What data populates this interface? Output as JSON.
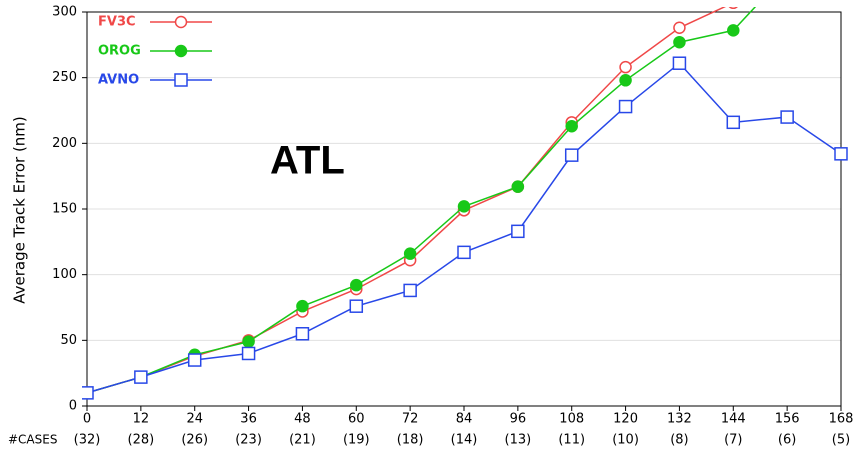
{
  "chart_data": {
    "type": "line",
    "annotation": "ATL",
    "y_label": "Average Track Error (nm)",
    "cases_label": "#CASES",
    "cases": [
      "(32)",
      "(28)",
      "(26)",
      "(23)",
      "(21)",
      "(19)",
      "(18)",
      "(14)",
      "(13)",
      "(11)",
      "(10)",
      "(8)",
      "(7)",
      "(6)",
      "(5)"
    ],
    "x": [
      0,
      12,
      24,
      36,
      48,
      60,
      72,
      84,
      96,
      108,
      120,
      132,
      144,
      156,
      168
    ],
    "xlim": [
      0,
      168
    ],
    "xticks": [
      0,
      12,
      24,
      36,
      48,
      60,
      72,
      84,
      96,
      108,
      120,
      132,
      144,
      156,
      {
        "value": 168,
        "label": "168"
      }
    ],
    "ylim": [
      0,
      300
    ],
    "yticks": [
      0,
      50,
      100,
      150,
      200,
      250,
      300
    ],
    "grid": true,
    "series": [
      {
        "name": "FV3C",
        "color": "#f04848",
        "marker": "open-circle",
        "values": [
          10,
          22,
          38,
          50,
          72,
          89,
          111,
          149,
          167,
          216,
          258,
          288,
          307,
          null,
          null
        ]
      },
      {
        "name": "OROG",
        "color": "#18c818",
        "marker": "filled-circle",
        "values": [
          10,
          22,
          39,
          49,
          76,
          92,
          116,
          152,
          167,
          213,
          248,
          277,
          286,
          330,
          null
        ]
      },
      {
        "name": "AVNO",
        "color": "#2848e8",
        "marker": "open-square",
        "values": [
          10,
          22,
          35,
          40,
          55,
          76,
          88,
          117,
          133,
          191,
          228,
          261,
          216,
          220,
          192
        ]
      }
    ]
  }
}
